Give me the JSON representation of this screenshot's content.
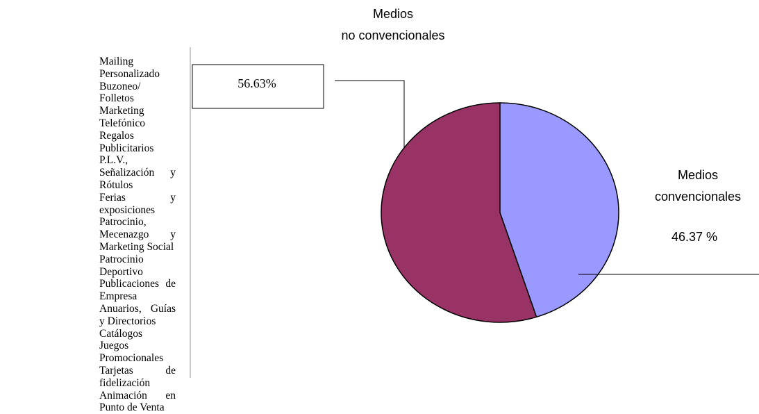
{
  "list": {
    "items": [
      "Mailing Personalizado",
      "Buzoneo/ Folletos",
      "Marketing Telefónico",
      "Regalos Publicitarios",
      "P.L.V., Señalización y Rótulos",
      "Ferias y exposiciones",
      "Patrocinio, Mecenazgo y Marketing Social",
      "Patrocinio Deportivo",
      "Publicaciones de Empresa",
      "Anuarios, Guías y Directorios",
      "Catálogos",
      "Juegos Promocionales",
      "Tarjetas de fidelización",
      "Animación en Punto de Venta"
    ]
  },
  "chart_data": {
    "type": "pie",
    "categories": [
      "Medios\nconvencionales",
      "Medios\nno convencionales"
    ],
    "values": [
      46.37,
      56.63
    ],
    "value_labels": [
      "46.37 %",
      "56.63%"
    ],
    "colors": [
      "#9999ff",
      "#993366"
    ]
  }
}
